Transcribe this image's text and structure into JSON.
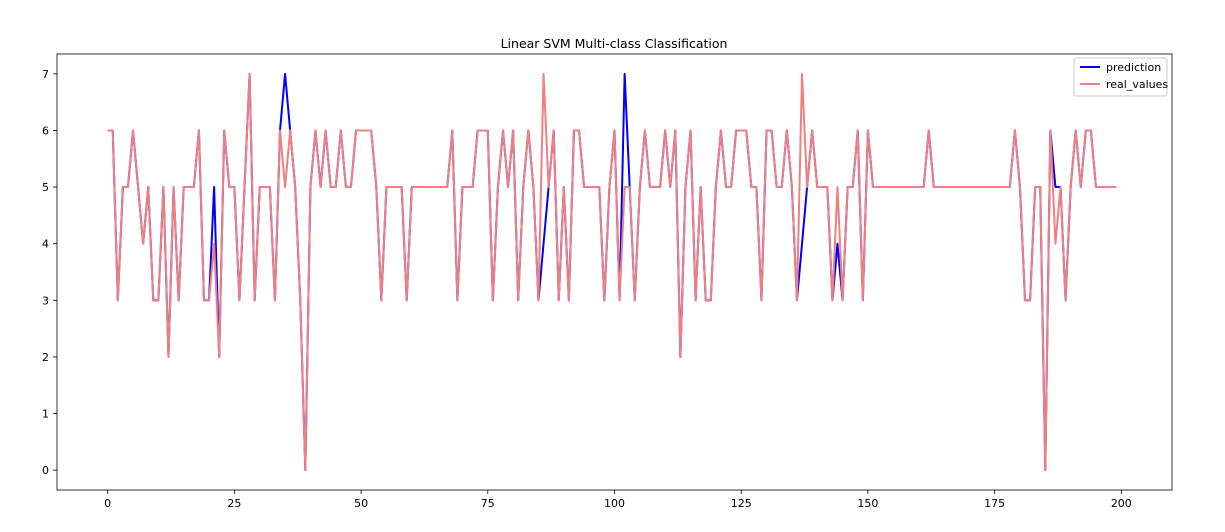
{
  "chart_data": {
    "type": "line",
    "title": "Linear SVM Multi-class Classification",
    "xlabel": "",
    "ylabel": "",
    "xlim": [
      -10,
      210
    ],
    "ylim": [
      -0.35,
      7.35
    ],
    "xticks": [
      0,
      25,
      50,
      75,
      100,
      125,
      150,
      175,
      200
    ],
    "yticks": [
      0,
      1,
      2,
      3,
      4,
      5,
      6,
      7
    ],
    "grid": false,
    "legend_position": "top-right",
    "series": [
      {
        "name": "prediction",
        "color": "#0000ff",
        "values": [
          6,
          6,
          3,
          5,
          5,
          6,
          5,
          4,
          5,
          3,
          3,
          5,
          2,
          5,
          3,
          5,
          5,
          5,
          6,
          3,
          3,
          5,
          2,
          6,
          5,
          5,
          3,
          5,
          7,
          3,
          5,
          5,
          5,
          3,
          6,
          7,
          6,
          5,
          3,
          0,
          5,
          6,
          5,
          6,
          5,
          5,
          6,
          5,
          5,
          6,
          6,
          6,
          6,
          5,
          3,
          5,
          5,
          5,
          5,
          3,
          5,
          5,
          5,
          5,
          5,
          5,
          5,
          5,
          6,
          3,
          5,
          5,
          5,
          6,
          6,
          6,
          3,
          5,
          6,
          5,
          6,
          3,
          5,
          6,
          5,
          3,
          4,
          5,
          6,
          3,
          5,
          3,
          6,
          6,
          5,
          5,
          5,
          5,
          3,
          5,
          6,
          3,
          7,
          5,
          3,
          5,
          6,
          5,
          5,
          5,
          6,
          5,
          6,
          2,
          5,
          6,
          3,
          5,
          3,
          3,
          5,
          6,
          5,
          5,
          6,
          6,
          6,
          5,
          5,
          3,
          6,
          6,
          5,
          5,
          6,
          5,
          3,
          4,
          5,
          6,
          5,
          5,
          5,
          3,
          4,
          3,
          5,
          5,
          6,
          3,
          6,
          5,
          5,
          5,
          5,
          5,
          5,
          5,
          5,
          5,
          5,
          5,
          6,
          5,
          5,
          5,
          5,
          5,
          5,
          5,
          5,
          5,
          5,
          5,
          5,
          5,
          5,
          5,
          5,
          6,
          5,
          3,
          3,
          5,
          5,
          0,
          6,
          5,
          5,
          3,
          5,
          6,
          5,
          6,
          6,
          5,
          5,
          5,
          5,
          5
        ],
        "data_labels": []
      },
      {
        "name": "real_values",
        "color": "#f08080",
        "values": [
          6,
          6,
          3,
          5,
          5,
          6,
          5,
          4,
          5,
          3,
          3,
          5,
          2,
          5,
          3,
          5,
          5,
          5,
          6,
          3,
          3,
          4,
          2,
          6,
          5,
          5,
          3,
          5,
          7,
          3,
          5,
          5,
          5,
          3,
          6,
          5,
          6,
          5,
          3,
          0,
          5,
          6,
          5,
          6,
          5,
          5,
          6,
          5,
          5,
          6,
          6,
          6,
          6,
          5,
          3,
          5,
          5,
          5,
          5,
          3,
          5,
          5,
          5,
          5,
          5,
          5,
          5,
          5,
          6,
          3,
          5,
          5,
          5,
          6,
          6,
          6,
          3,
          5,
          6,
          5,
          6,
          3,
          5,
          6,
          5,
          3,
          7,
          5,
          6,
          3,
          5,
          3,
          6,
          6,
          5,
          5,
          5,
          5,
          3,
          5,
          6,
          3,
          5,
          5,
          3,
          5,
          6,
          5,
          5,
          5,
          6,
          5,
          6,
          2,
          5,
          6,
          3,
          5,
          3,
          3,
          5,
          6,
          5,
          5,
          6,
          6,
          6,
          5,
          5,
          3,
          6,
          6,
          5,
          5,
          6,
          5,
          3,
          7,
          5,
          6,
          5,
          5,
          5,
          3,
          5,
          3,
          5,
          5,
          6,
          3,
          6,
          5,
          5,
          5,
          5,
          5,
          5,
          5,
          5,
          5,
          5,
          5,
          6,
          5,
          5,
          5,
          5,
          5,
          5,
          5,
          5,
          5,
          5,
          5,
          5,
          5,
          5,
          5,
          5,
          6,
          5,
          3,
          3,
          5,
          5,
          0,
          6,
          4,
          5,
          3,
          5,
          6,
          5,
          6,
          6,
          5,
          5,
          5,
          5,
          5
        ]
      }
    ]
  }
}
